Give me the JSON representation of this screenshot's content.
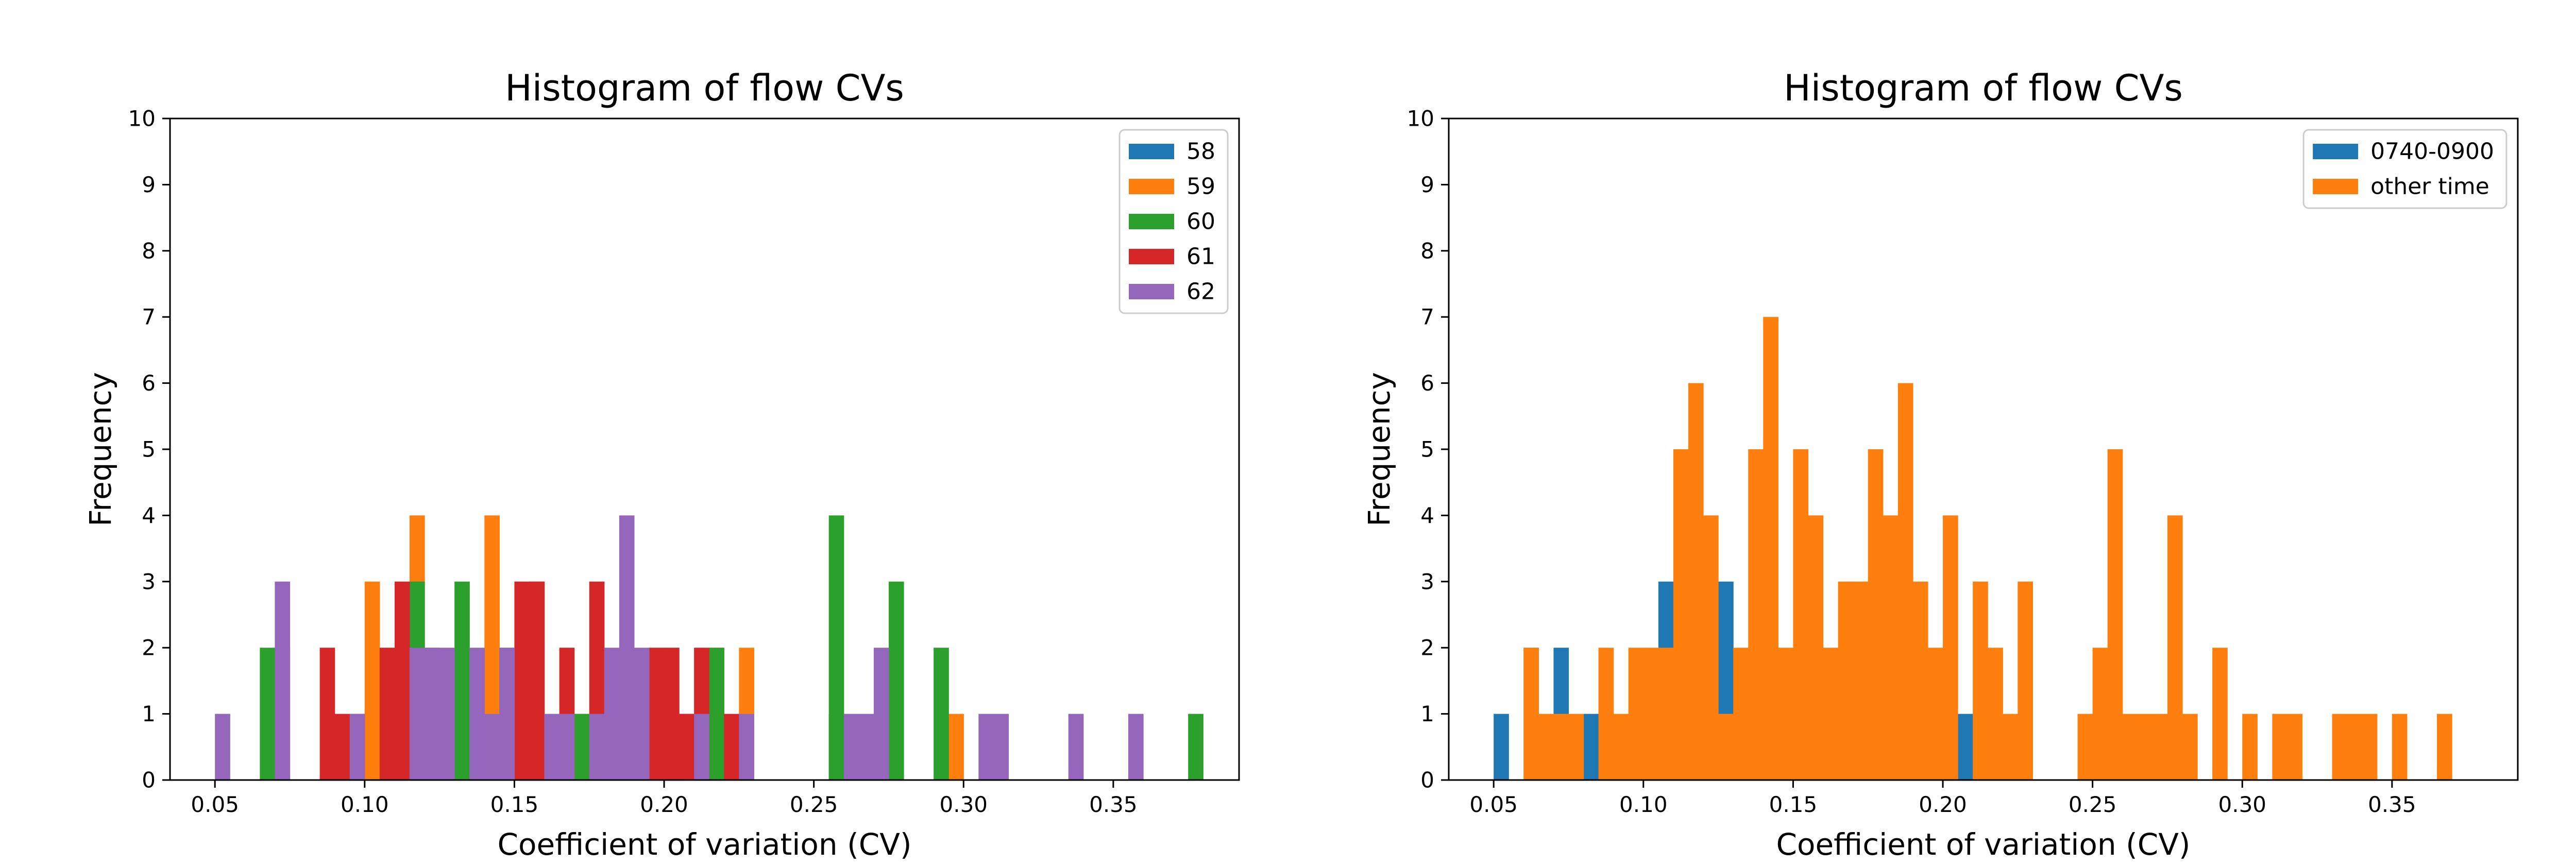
{
  "chart_data": [
    {
      "type": "bar",
      "title": "Histogram of flow CVs",
      "xlabel": "Coefficient of variation (CV)",
      "ylabel": "Frequency",
      "xlim": [
        0.035,
        0.392
      ],
      "ylim": [
        0,
        10
      ],
      "xticks": [
        "0.05",
        "0.10",
        "0.15",
        "0.20",
        "0.25",
        "0.30",
        "0.35"
      ],
      "yticks": [
        "0",
        "1",
        "2",
        "3",
        "4",
        "5",
        "6",
        "7",
        "8",
        "9",
        "10"
      ],
      "grid": false,
      "legend_position": "top-right",
      "bin_width": 0.005,
      "series": [
        {
          "name": "58",
          "color": "#1f77b4",
          "bins": [
            [
              0.155,
              3
            ],
            [
              0.18,
              1
            ],
            [
              0.205,
              1
            ],
            [
              0.255,
              1
            ]
          ]
        },
        {
          "name": "59",
          "color": "#ff7f0e",
          "bins": [
            [
              0.1,
              3
            ],
            [
              0.115,
              4
            ],
            [
              0.125,
              1
            ],
            [
              0.14,
              4
            ],
            [
              0.15,
              2
            ],
            [
              0.17,
              1
            ],
            [
              0.2,
              1
            ],
            [
              0.21,
              1
            ],
            [
              0.215,
              2
            ],
            [
              0.225,
              2
            ],
            [
              0.295,
              1
            ]
          ]
        },
        {
          "name": "60",
          "color": "#2ca02c",
          "bins": [
            [
              0.065,
              2
            ],
            [
              0.11,
              1
            ],
            [
              0.115,
              3
            ],
            [
              0.12,
              2
            ],
            [
              0.13,
              3
            ],
            [
              0.145,
              2
            ],
            [
              0.155,
              1
            ],
            [
              0.17,
              1
            ],
            [
              0.19,
              1
            ],
            [
              0.215,
              2
            ],
            [
              0.255,
              4
            ],
            [
              0.275,
              3
            ],
            [
              0.29,
              2
            ],
            [
              0.375,
              1
            ]
          ]
        },
        {
          "name": "61",
          "color": "#d62728",
          "bins": [
            [
              0.07,
              2
            ],
            [
              0.085,
              2
            ],
            [
              0.09,
              1
            ],
            [
              0.095,
              1
            ],
            [
              0.105,
              2
            ],
            [
              0.11,
              3
            ],
            [
              0.15,
              3
            ],
            [
              0.155,
              3
            ],
            [
              0.165,
              2
            ],
            [
              0.175,
              3
            ],
            [
              0.195,
              2
            ],
            [
              0.2,
              2
            ],
            [
              0.205,
              1
            ],
            [
              0.21,
              2
            ],
            [
              0.22,
              1
            ]
          ]
        },
        {
          "name": "62",
          "color": "#9467bd",
          "bins": [
            [
              0.05,
              1
            ],
            [
              0.07,
              3
            ],
            [
              0.095,
              1
            ],
            [
              0.115,
              2
            ],
            [
              0.12,
              2
            ],
            [
              0.125,
              2
            ],
            [
              0.135,
              2
            ],
            [
              0.14,
              1
            ],
            [
              0.145,
              2
            ],
            [
              0.16,
              1
            ],
            [
              0.165,
              1
            ],
            [
              0.175,
              1
            ],
            [
              0.18,
              2
            ],
            [
              0.185,
              4
            ],
            [
              0.19,
              2
            ],
            [
              0.21,
              1
            ],
            [
              0.225,
              1
            ],
            [
              0.26,
              1
            ],
            [
              0.265,
              1
            ],
            [
              0.27,
              2
            ],
            [
              0.305,
              1
            ],
            [
              0.31,
              1
            ],
            [
              0.335,
              1
            ],
            [
              0.355,
              1
            ]
          ]
        }
      ]
    },
    {
      "type": "bar",
      "title": "Histogram of flow CVs",
      "xlabel": "Coefficient of variation (CV)",
      "ylabel": "Frequency",
      "xlim": [
        0.035,
        0.392
      ],
      "ylim": [
        0,
        10
      ],
      "xticks": [
        "0.05",
        "0.10",
        "0.15",
        "0.20",
        "0.25",
        "0.30",
        "0.35"
      ],
      "yticks": [
        "0",
        "1",
        "2",
        "3",
        "4",
        "5",
        "6",
        "7",
        "8",
        "9",
        "10"
      ],
      "grid": false,
      "legend_position": "top-right",
      "bin_width": 0.005,
      "series": [
        {
          "name": "0740-0900",
          "color": "#1f77b4",
          "bins": [
            [
              0.05,
              1
            ],
            [
              0.06,
              2
            ],
            [
              0.07,
              2
            ],
            [
              0.08,
              1
            ],
            [
              0.105,
              3
            ],
            [
              0.125,
              3
            ],
            [
              0.205,
              1
            ]
          ]
        },
        {
          "name": "other time",
          "color": "#ff7f0e",
          "bins": [
            [
              0.06,
              2
            ],
            [
              0.065,
              1
            ],
            [
              0.07,
              1
            ],
            [
              0.075,
              1
            ],
            [
              0.085,
              2
            ],
            [
              0.09,
              1
            ],
            [
              0.095,
              2
            ],
            [
              0.1,
              2
            ],
            [
              0.105,
              2
            ],
            [
              0.11,
              5
            ],
            [
              0.115,
              6
            ],
            [
              0.12,
              4
            ],
            [
              0.125,
              1
            ],
            [
              0.13,
              2
            ],
            [
              0.135,
              5
            ],
            [
              0.14,
              7
            ],
            [
              0.145,
              2
            ],
            [
              0.15,
              5
            ],
            [
              0.155,
              4
            ],
            [
              0.16,
              2
            ],
            [
              0.165,
              3
            ],
            [
              0.17,
              3
            ],
            [
              0.175,
              5
            ],
            [
              0.18,
              4
            ],
            [
              0.185,
              6
            ],
            [
              0.19,
              3
            ],
            [
              0.195,
              2
            ],
            [
              0.2,
              4
            ],
            [
              0.21,
              3
            ],
            [
              0.215,
              2
            ],
            [
              0.22,
              1
            ],
            [
              0.225,
              3
            ],
            [
              0.245,
              1
            ],
            [
              0.25,
              2
            ],
            [
              0.255,
              5
            ],
            [
              0.26,
              1
            ],
            [
              0.265,
              1
            ],
            [
              0.27,
              1
            ],
            [
              0.275,
              4
            ],
            [
              0.28,
              1
            ],
            [
              0.29,
              2
            ],
            [
              0.3,
              1
            ],
            [
              0.31,
              1
            ],
            [
              0.315,
              1
            ],
            [
              0.33,
              1
            ],
            [
              0.335,
              1
            ],
            [
              0.34,
              1
            ],
            [
              0.35,
              1
            ],
            [
              0.365,
              1
            ]
          ]
        }
      ]
    }
  ]
}
